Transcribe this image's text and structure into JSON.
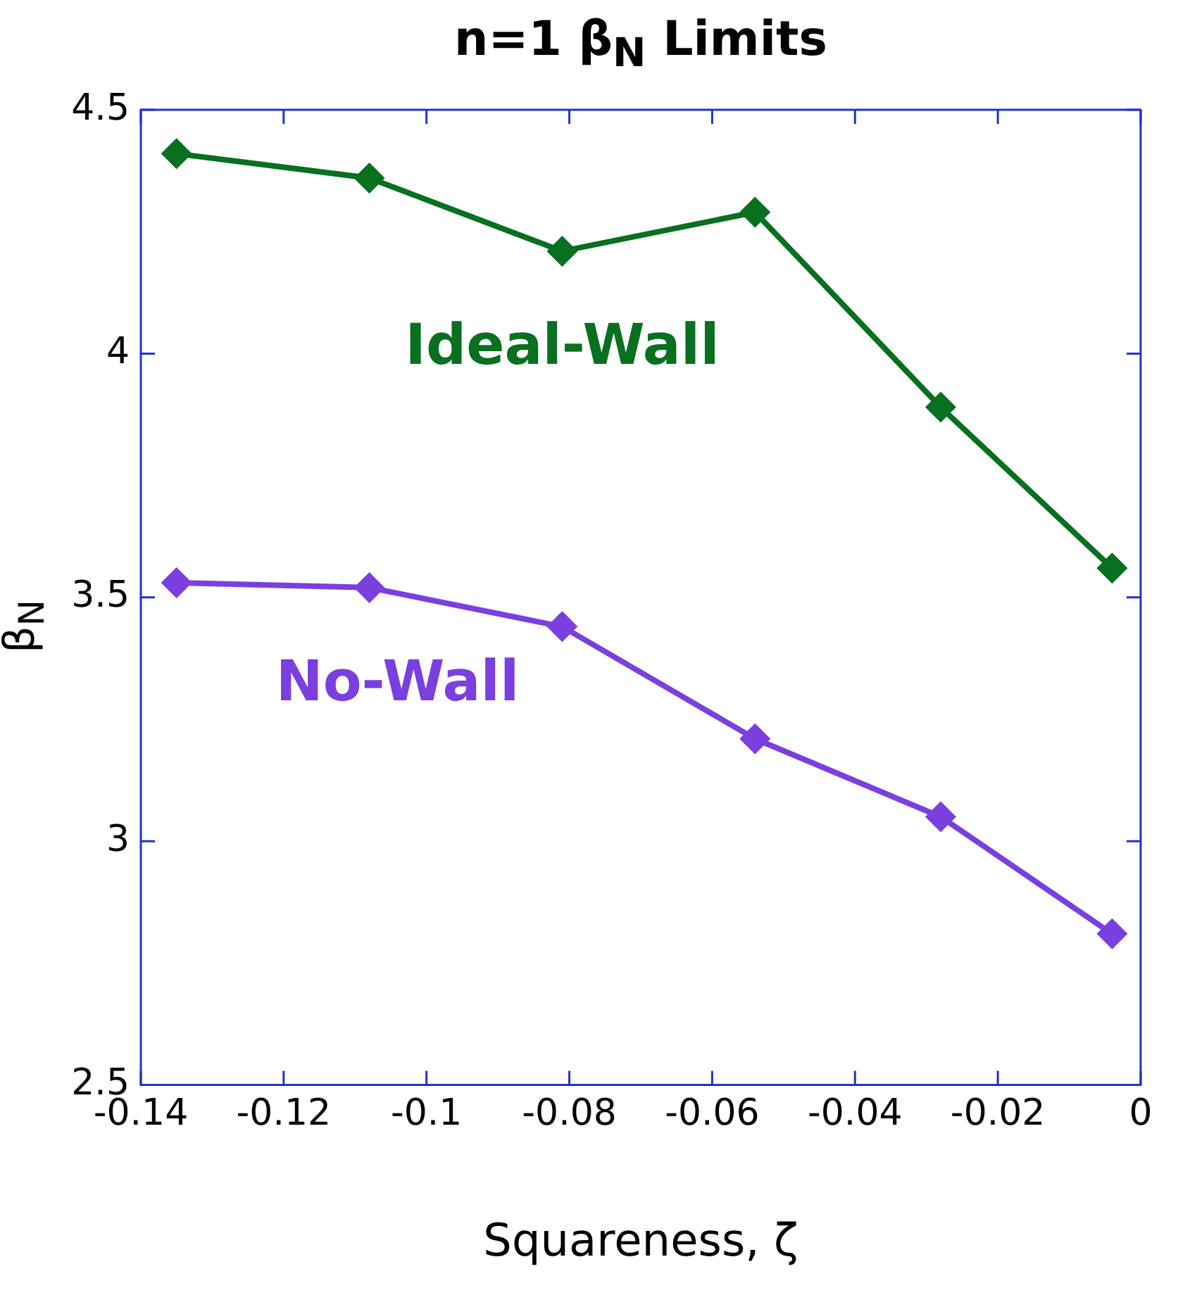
{
  "chart_data": {
    "type": "line",
    "title": "n=1 β$_{N}$ Limits",
    "xlabel": "Squareness, ζ",
    "ylabel": "β$_{N}$",
    "x": [
      -0.135,
      -0.108,
      -0.081,
      -0.054,
      -0.028,
      -0.004
    ],
    "series": [
      {
        "name": "Ideal-Wall",
        "color": "#08701f",
        "values": [
          4.41,
          4.36,
          4.21,
          4.29,
          3.89,
          3.56
        ]
      },
      {
        "name": "No-Wall",
        "color": "#7b3fe0",
        "values": [
          3.53,
          3.52,
          3.44,
          3.21,
          3.05,
          2.81
        ]
      }
    ],
    "xlim": [
      -0.14,
      0
    ],
    "xticks": [
      -0.14,
      -0.12,
      {
        "value": -0.1,
        "label": "-0.1"
      },
      -0.08,
      -0.06,
      -0.04,
      -0.02,
      0
    ],
    "ylim": [
      2.5,
      4.5
    ],
    "yticks": [
      2.5,
      3,
      3.5,
      4,
      4.5
    ],
    "grid": false,
    "legend": false,
    "marker": "diamond",
    "line_style": "solid"
  }
}
